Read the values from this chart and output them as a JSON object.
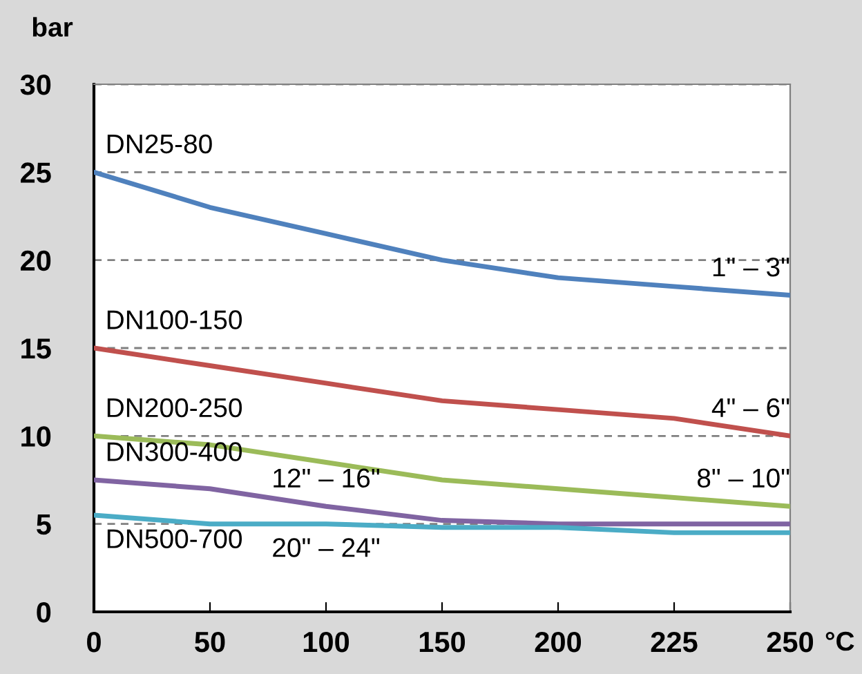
{
  "chart_data": {
    "type": "line",
    "xlabel": "°C",
    "ylabel": "bar",
    "categories": [
      "0",
      "50",
      "100",
      "150",
      "200",
      "225",
      "250"
    ],
    "series": [
      {
        "color": "#4f81bd",
        "values": [
          25,
          23,
          21.5,
          20,
          19,
          18.5,
          18
        ]
      },
      {
        "color": "#c0504d",
        "values": [
          15,
          14,
          13,
          12,
          11.5,
          11,
          10
        ]
      },
      {
        "color": "#9bbb59",
        "values": [
          10,
          9.5,
          8.5,
          7.5,
          7,
          6.5,
          6
        ]
      },
      {
        "color": "#8064a2",
        "values": [
          7.5,
          7,
          6,
          5.2,
          5,
          5,
          5
        ]
      },
      {
        "color": "#4bacc6",
        "values": [
          5.5,
          5,
          5,
          4.8,
          4.8,
          4.5,
          4.5
        ]
      }
    ],
    "ylim": [
      0,
      30
    ],
    "yticks": [
      0,
      5,
      10,
      15,
      20,
      25,
      30
    ],
    "grid": "y",
    "line_style": "solid",
    "marker": "none",
    "legend": false,
    "annotations": [
      {
        "text": "DN25-80",
        "x": "0",
        "y": 25
      },
      {
        "text": "DN100-150",
        "x": "0",
        "y": 15
      },
      {
        "text": "DN200-250",
        "x": "0",
        "y": 10
      },
      {
        "text": "DN300-400",
        "x": "0",
        "y": 7.5
      },
      {
        "text": "DN500-700",
        "x": "0",
        "y": 5.5
      },
      {
        "text": "1\" – 3\"",
        "x": "250",
        "y": 18
      },
      {
        "text": "4\" – 6\"",
        "x": "250",
        "y": 10
      },
      {
        "text": "8\" – 10\"",
        "x": "250",
        "y": 6
      },
      {
        "text": "12\" – 16\"",
        "x": "100",
        "y": 6
      },
      {
        "text": "20\" – 24\"",
        "x": "100",
        "y": 5
      }
    ]
  }
}
